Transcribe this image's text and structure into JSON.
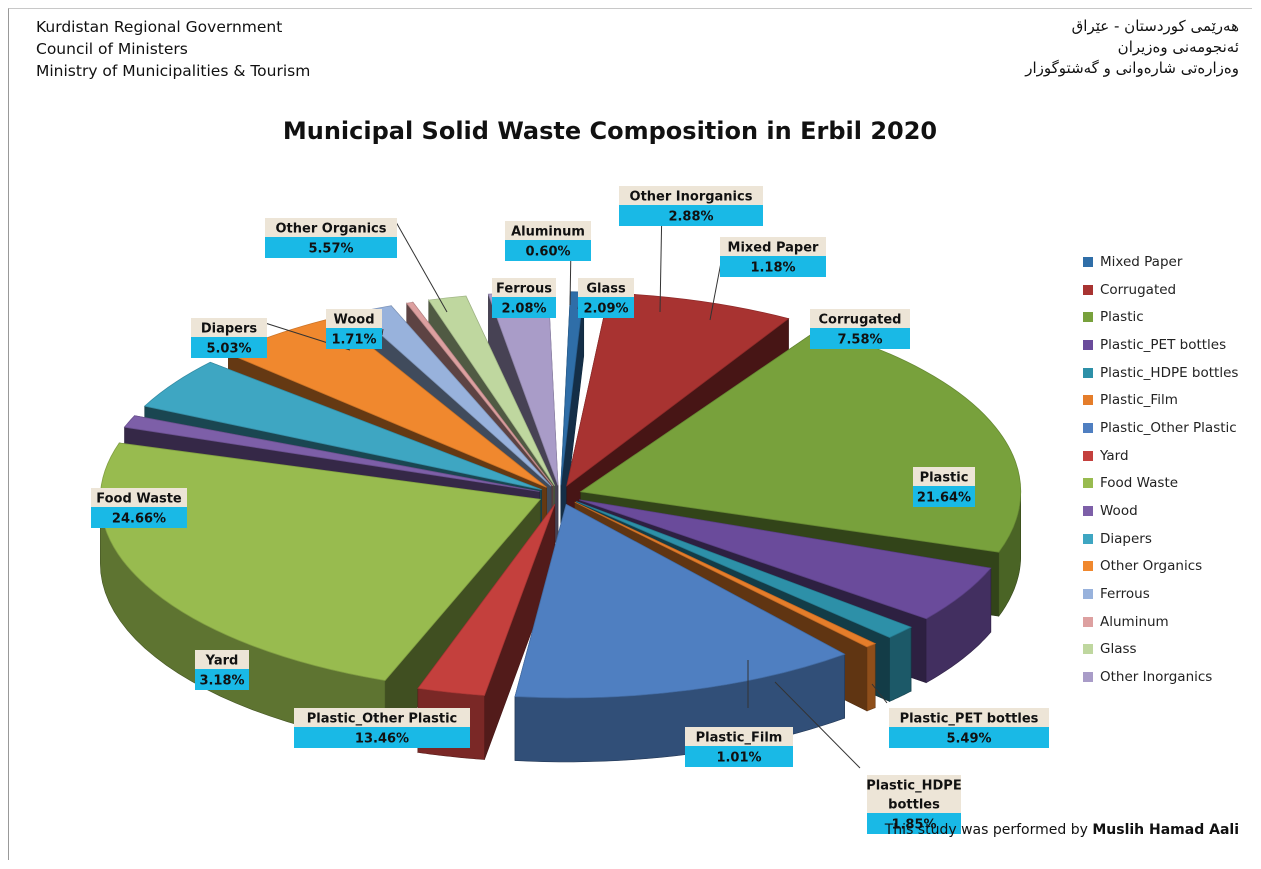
{
  "header": {
    "left_lines": [
      "Kurdistan Regional Government",
      "Council of Ministers",
      "Ministry of Municipalities & Tourism"
    ],
    "right_lines": [
      "هەرێمی کوردستان - عێراق",
      "ئەنجومەنی وەزیران",
      "وەزارەتی شارەوانی و گەشتوگوزار"
    ]
  },
  "footer": {
    "credit_prefix": "This study was performed by",
    "credit_name": "Muslih Hamad Aali"
  },
  "chart_data": {
    "type": "pie",
    "title": "Municipal Solid Waste Composition in Erbil 2020",
    "legend_position": "right",
    "exploded": true,
    "slices": [
      {
        "name": "Mixed Paper",
        "value": 1.18,
        "label_value": "1.18%",
        "label_lines": [
          "Mixed Paper"
        ],
        "color": "#2f6ea8"
      },
      {
        "name": "Corrugated",
        "value": 7.58,
        "label_value": "7.58%",
        "label_lines": [
          "Corrugated"
        ],
        "color": "#a83331"
      },
      {
        "name": "Plastic",
        "value": 21.64,
        "label_value": "21.64%",
        "label_lines": [
          "Plastic"
        ],
        "color": "#78a13c"
      },
      {
        "name": "Plastic_PET bottles",
        "value": 5.49,
        "label_value": "5.49%",
        "label_lines": [
          "Plastic_PET bottles"
        ],
        "color": "#6a4b9b"
      },
      {
        "name": "Plastic_HDPE bottles",
        "value": 1.85,
        "label_value": "1.85%",
        "label_lines": [
          "Plastic_HDPE",
          "bottles"
        ],
        "color": "#2d90a8"
      },
      {
        "name": "Plastic_Film",
        "value": 1.01,
        "label_value": "1.01%",
        "label_lines": [
          "Plastic_Film"
        ],
        "color": "#e57d2a"
      },
      {
        "name": "Plastic_Other Plastic",
        "value": 13.46,
        "label_value": "13.46%",
        "label_lines": [
          "Plastic_Other Plastic"
        ],
        "color": "#4f7fc1"
      },
      {
        "name": "Yard",
        "value": 3.18,
        "label_value": "3.18%",
        "label_lines": [
          "Yard"
        ],
        "color": "#c4403d"
      },
      {
        "name": "Food Waste",
        "value": 24.66,
        "label_value": "24.66%",
        "label_lines": [
          "Food Waste"
        ],
        "color": "#98bb4f"
      },
      {
        "name": "Wood",
        "value": 1.71,
        "label_value": "1.71%",
        "label_lines": [
          "Wood"
        ],
        "color": "#7d5fa8"
      },
      {
        "name": "Diapers",
        "value": 5.03,
        "label_value": "5.03%",
        "label_lines": [
          "Diapers"
        ],
        "color": "#3ea6c2"
      },
      {
        "name": "Other Organics",
        "value": 5.57,
        "label_value": "5.57%",
        "label_lines": [
          "Other Organics"
        ],
        "color": "#f0882e"
      },
      {
        "name": "Ferrous",
        "value": 2.08,
        "label_value": "2.08%",
        "label_lines": [
          "Ferrous"
        ],
        "color": "#98b2dc"
      },
      {
        "name": "Aluminum",
        "value": 0.6,
        "label_value": "0.60%",
        "label_lines": [
          "Aluminum"
        ],
        "color": "#dda0a0"
      },
      {
        "name": "Glass",
        "value": 2.09,
        "label_value": "2.09%",
        "label_lines": [
          "Glass"
        ],
        "color": "#bfd79f"
      },
      {
        "name": "Other Inorganics",
        "value": 2.88,
        "label_value": "2.88%",
        "label_lines": [
          "Other Inorganics"
        ],
        "color": "#a99cc8"
      }
    ],
    "legend": [
      "Mixed Paper",
      "Corrugated",
      "Plastic",
      "Plastic_PET bottles",
      "Plastic_HDPE bottles",
      "Plastic_Film",
      "Plastic_Other Plastic",
      "Yard",
      "Food Waste",
      "Wood",
      "Diapers",
      "Other Organics",
      "Ferrous",
      "Aluminum",
      "Glass",
      "Other Inorganics"
    ]
  }
}
